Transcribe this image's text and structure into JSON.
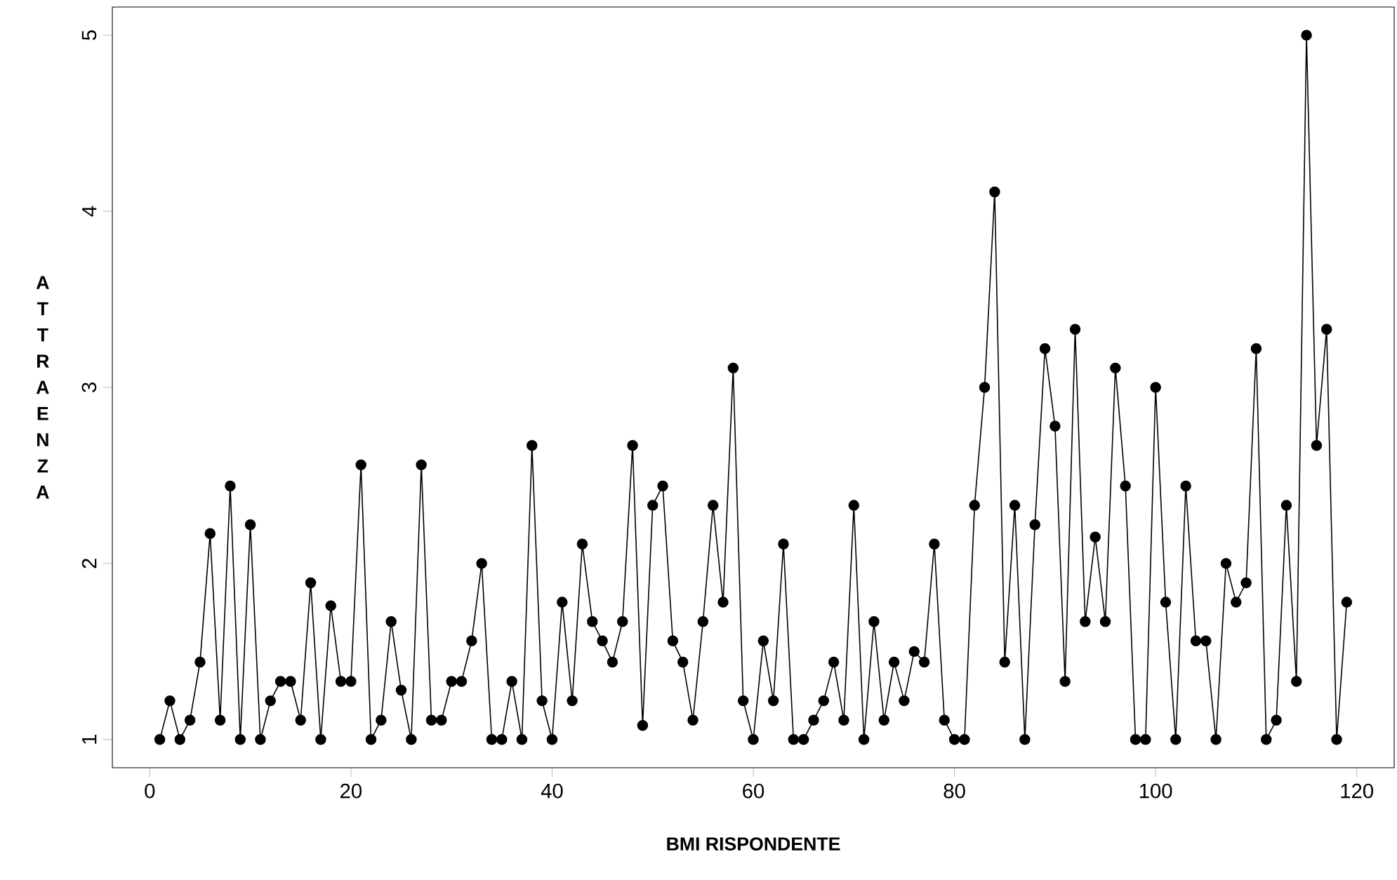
{
  "chart_data": {
    "type": "line",
    "xlabel": "BMI RISPONDENTE",
    "ylabel": "A T T R A E N Z A",
    "x": [
      1,
      2,
      3,
      4,
      5,
      6,
      7,
      8,
      9,
      10,
      11,
      12,
      13,
      14,
      15,
      16,
      17,
      18,
      19,
      20,
      21,
      22,
      23,
      24,
      25,
      26,
      27,
      28,
      29,
      30,
      31,
      32,
      33,
      34,
      35,
      36,
      37,
      38,
      39,
      40,
      41,
      42,
      43,
      44,
      45,
      46,
      47,
      48,
      49,
      50,
      51,
      52,
      53,
      54,
      55,
      56,
      57,
      58,
      59,
      60,
      61,
      62,
      63,
      64,
      65,
      66,
      67,
      68,
      69,
      70,
      71,
      72,
      73,
      74,
      75,
      76,
      77,
      78,
      79,
      80,
      81,
      82,
      83,
      84,
      85,
      86,
      87,
      88,
      89,
      90,
      91,
      92,
      93,
      94,
      95,
      96,
      97,
      98,
      99,
      100,
      101,
      102,
      103,
      104,
      105,
      106,
      107,
      108,
      109,
      110,
      111,
      112,
      113,
      114,
      115,
      116,
      117,
      118,
      119
    ],
    "series": [
      {
        "color": "#000000",
        "values": [
          1.0,
          1.22,
          1.0,
          1.11,
          1.44,
          2.17,
          1.11,
          2.44,
          1.0,
          2.22,
          1.0,
          1.22,
          1.33,
          1.33,
          1.11,
          1.89,
          1.0,
          1.76,
          1.33,
          1.33,
          2.56,
          1.0,
          1.11,
          1.67,
          1.28,
          1.0,
          2.56,
          1.11,
          1.11,
          1.33,
          1.33,
          1.56,
          2.0,
          1.0,
          1.0,
          1.33,
          1.0,
          2.67,
          1.22,
          1.0,
          1.78,
          1.22,
          2.11,
          1.67,
          1.56,
          1.44,
          1.67,
          2.67,
          1.08,
          2.33,
          2.44,
          1.56,
          1.44,
          1.11,
          1.67,
          2.33,
          1.78,
          3.11,
          1.22,
          1.0,
          1.56,
          1.22,
          2.11,
          1.0,
          1.0,
          1.11,
          1.22,
          1.44,
          1.11,
          2.33,
          1.0,
          1.67,
          1.11,
          1.44,
          1.22,
          1.5,
          1.44,
          2.11,
          1.11,
          1.0,
          1.0,
          2.33,
          3.0,
          4.11,
          1.44,
          2.33,
          1.0,
          2.22,
          3.22,
          2.78,
          1.33,
          3.33,
          1.67,
          2.15,
          1.67,
          3.11,
          2.44,
          1.0,
          1.0,
          3.0,
          1.78,
          1.0,
          2.44,
          1.56,
          1.56,
          1.0,
          2.0,
          1.78,
          1.89,
          3.22,
          1.0,
          1.11,
          2.33,
          1.33,
          5.0,
          2.67,
          3.33,
          1.0,
          1.78
        ]
      }
    ],
    "xlim": [
      -3.72,
      123.72
    ],
    "ylim": [
      0.84,
      5.16
    ],
    "xticks": [
      0,
      20,
      40,
      60,
      80,
      100,
      120
    ],
    "yticks": [
      1,
      2,
      3,
      4,
      5
    ],
    "grid": false,
    "marker": "circle",
    "line_style": "solid"
  }
}
